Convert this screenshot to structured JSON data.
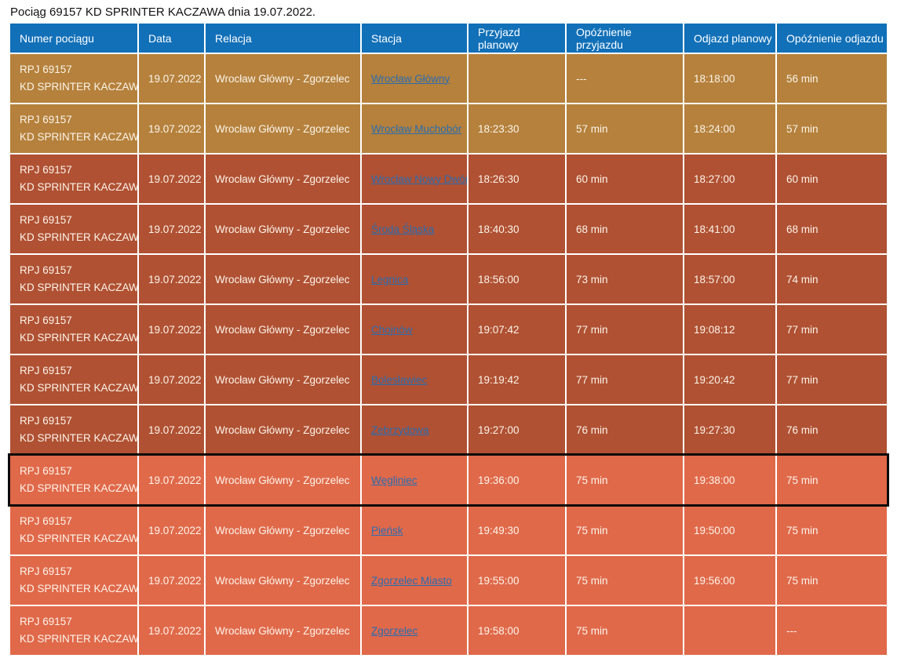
{
  "page": {
    "title": "Pociąg 69157 KD SPRINTER KACZAWA dnia 19.07.2022."
  },
  "palette": {
    "header_bg": "#1170b8",
    "gold": "#b5813c",
    "red": "#b05133",
    "orange": "#e0694a",
    "link_blue": "#2a6cb0",
    "highlight_border": "#0b0b0b"
  },
  "table": {
    "columns": [
      "Numer pociągu",
      "Data",
      "Relacja",
      "Stacja",
      "Przyjazd planowy",
      "Opóźnienie przyjazdu",
      "Odjazd planowy",
      "Opóźnienie odjazdu"
    ],
    "rows": [
      {
        "train_number_line1": "RPJ 69157",
        "train_number_line2": "KD SPRINTER KACZAWA",
        "date": "19.07.2022",
        "relation": "Wrocław Główny - Zgorzelec",
        "station": "Wrocław Główny",
        "arrival_planned": "",
        "arrival_delay": "---",
        "departure_planned": "18:18:00",
        "departure_delay": "56 min",
        "color": "gold",
        "highlighted": false
      },
      {
        "train_number_line1": "RPJ 69157",
        "train_number_line2": "KD SPRINTER KACZAWA",
        "date": "19.07.2022",
        "relation": "Wrocław Główny - Zgorzelec",
        "station": "Wrocław Muchobór",
        "arrival_planned": "18:23:30",
        "arrival_delay": "57 min",
        "departure_planned": "18:24:00",
        "departure_delay": "57 min",
        "color": "gold",
        "highlighted": false
      },
      {
        "train_number_line1": "RPJ 69157",
        "train_number_line2": "KD SPRINTER KACZAWA",
        "date": "19.07.2022",
        "relation": "Wrocław Główny - Zgorzelec",
        "station": "Wrocław Nowy Dwór",
        "arrival_planned": "18:26:30",
        "arrival_delay": "60 min",
        "departure_planned": "18:27:00",
        "departure_delay": "60 min",
        "color": "red",
        "highlighted": false
      },
      {
        "train_number_line1": "RPJ 69157",
        "train_number_line2": "KD SPRINTER KACZAWA",
        "date": "19.07.2022",
        "relation": "Wrocław Główny - Zgorzelec",
        "station": "Środa Śląska",
        "arrival_planned": "18:40:30",
        "arrival_delay": "68 min",
        "departure_planned": "18:41:00",
        "departure_delay": "68 min",
        "color": "red",
        "highlighted": false
      },
      {
        "train_number_line1": "RPJ 69157",
        "train_number_line2": "KD SPRINTER KACZAWA",
        "date": "19.07.2022",
        "relation": "Wrocław Główny - Zgorzelec",
        "station": "Legnica",
        "arrival_planned": "18:56:00",
        "arrival_delay": "73 min",
        "departure_planned": "18:57:00",
        "departure_delay": "74 min",
        "color": "red",
        "highlighted": false
      },
      {
        "train_number_line1": "RPJ 69157",
        "train_number_line2": "KD SPRINTER KACZAWA",
        "date": "19.07.2022",
        "relation": "Wrocław Główny - Zgorzelec",
        "station": "Chojnów",
        "arrival_planned": "19:07:42",
        "arrival_delay": "77 min",
        "departure_planned": "19:08:12",
        "departure_delay": "77 min",
        "color": "red",
        "highlighted": false
      },
      {
        "train_number_line1": "RPJ 69157",
        "train_number_line2": "KD SPRINTER KACZAWA",
        "date": "19.07.2022",
        "relation": "Wrocław Główny - Zgorzelec",
        "station": "Bolesławiec",
        "arrival_planned": "19:19:42",
        "arrival_delay": "77 min",
        "departure_planned": "19:20:42",
        "departure_delay": "77 min",
        "color": "red",
        "highlighted": false
      },
      {
        "train_number_line1": "RPJ 69157",
        "train_number_line2": "KD SPRINTER KACZAWA",
        "date": "19.07.2022",
        "relation": "Wrocław Główny - Zgorzelec",
        "station": "Zebrzydowa",
        "arrival_planned": "19:27:00",
        "arrival_delay": "76 min",
        "departure_planned": "19:27:30",
        "departure_delay": "76 min",
        "color": "red",
        "highlighted": false
      },
      {
        "train_number_line1": "RPJ 69157",
        "train_number_line2": "KD SPRINTER KACZAWA",
        "date": "19.07.2022",
        "relation": "Wrocław Główny - Zgorzelec",
        "station": "Węgliniec",
        "arrival_planned": "19:36:00",
        "arrival_delay": "75 min",
        "departure_planned": "19:38:00",
        "departure_delay": "75 min",
        "color": "orange",
        "highlighted": true
      },
      {
        "train_number_line1": "RPJ 69157",
        "train_number_line2": "KD SPRINTER KACZAWA",
        "date": "19.07.2022",
        "relation": "Wrocław Główny - Zgorzelec",
        "station": "Pieńsk",
        "arrival_planned": "19:49:30",
        "arrival_delay": "75 min",
        "departure_planned": "19:50:00",
        "departure_delay": "75 min",
        "color": "orange",
        "highlighted": false
      },
      {
        "train_number_line1": "RPJ 69157",
        "train_number_line2": "KD SPRINTER KACZAWA",
        "date": "19.07.2022",
        "relation": "Wrocław Główny - Zgorzelec",
        "station": "Zgorzelec Miasto",
        "arrival_planned": "19:55:00",
        "arrival_delay": "75 min",
        "departure_planned": "19:56:00",
        "departure_delay": "75 min",
        "color": "orange",
        "highlighted": false
      },
      {
        "train_number_line1": "RPJ 69157",
        "train_number_line2": "KD SPRINTER KACZAWA",
        "date": "19.07.2022",
        "relation": "Wrocław Główny - Zgorzelec",
        "station": "Zgorzelec",
        "arrival_planned": "19:58:00",
        "arrival_delay": "75 min",
        "departure_planned": "",
        "departure_delay": "---",
        "color": "orange",
        "highlighted": false
      }
    ]
  }
}
